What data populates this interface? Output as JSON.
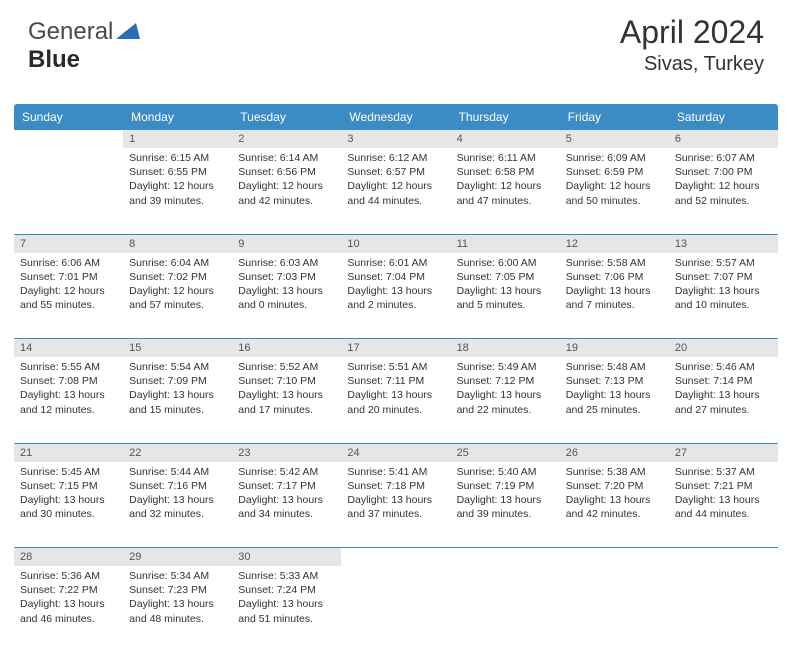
{
  "logo": {
    "text1": "General",
    "text2": "Blue",
    "triangle_color": "#2a6fb5"
  },
  "title": "April 2024",
  "location": "Sivas, Turkey",
  "colors": {
    "header_bg": "#3b8bc4",
    "header_text": "#ffffff",
    "daynum_bg": "#e6e6e6",
    "border": "#3b8bc4",
    "text": "#333333"
  },
  "day_headers": [
    "Sunday",
    "Monday",
    "Tuesday",
    "Wednesday",
    "Thursday",
    "Friday",
    "Saturday"
  ],
  "weeks": [
    [
      null,
      {
        "n": "1",
        "sr": "6:15 AM",
        "ss": "6:55 PM",
        "dl": "12 hours and 39 minutes."
      },
      {
        "n": "2",
        "sr": "6:14 AM",
        "ss": "6:56 PM",
        "dl": "12 hours and 42 minutes."
      },
      {
        "n": "3",
        "sr": "6:12 AM",
        "ss": "6:57 PM",
        "dl": "12 hours and 44 minutes."
      },
      {
        "n": "4",
        "sr": "6:11 AM",
        "ss": "6:58 PM",
        "dl": "12 hours and 47 minutes."
      },
      {
        "n": "5",
        "sr": "6:09 AM",
        "ss": "6:59 PM",
        "dl": "12 hours and 50 minutes."
      },
      {
        "n": "6",
        "sr": "6:07 AM",
        "ss": "7:00 PM",
        "dl": "12 hours and 52 minutes."
      }
    ],
    [
      {
        "n": "7",
        "sr": "6:06 AM",
        "ss": "7:01 PM",
        "dl": "12 hours and 55 minutes."
      },
      {
        "n": "8",
        "sr": "6:04 AM",
        "ss": "7:02 PM",
        "dl": "12 hours and 57 minutes."
      },
      {
        "n": "9",
        "sr": "6:03 AM",
        "ss": "7:03 PM",
        "dl": "13 hours and 0 minutes."
      },
      {
        "n": "10",
        "sr": "6:01 AM",
        "ss": "7:04 PM",
        "dl": "13 hours and 2 minutes."
      },
      {
        "n": "11",
        "sr": "6:00 AM",
        "ss": "7:05 PM",
        "dl": "13 hours and 5 minutes."
      },
      {
        "n": "12",
        "sr": "5:58 AM",
        "ss": "7:06 PM",
        "dl": "13 hours and 7 minutes."
      },
      {
        "n": "13",
        "sr": "5:57 AM",
        "ss": "7:07 PM",
        "dl": "13 hours and 10 minutes."
      }
    ],
    [
      {
        "n": "14",
        "sr": "5:55 AM",
        "ss": "7:08 PM",
        "dl": "13 hours and 12 minutes."
      },
      {
        "n": "15",
        "sr": "5:54 AM",
        "ss": "7:09 PM",
        "dl": "13 hours and 15 minutes."
      },
      {
        "n": "16",
        "sr": "5:52 AM",
        "ss": "7:10 PM",
        "dl": "13 hours and 17 minutes."
      },
      {
        "n": "17",
        "sr": "5:51 AM",
        "ss": "7:11 PM",
        "dl": "13 hours and 20 minutes."
      },
      {
        "n": "18",
        "sr": "5:49 AM",
        "ss": "7:12 PM",
        "dl": "13 hours and 22 minutes."
      },
      {
        "n": "19",
        "sr": "5:48 AM",
        "ss": "7:13 PM",
        "dl": "13 hours and 25 minutes."
      },
      {
        "n": "20",
        "sr": "5:46 AM",
        "ss": "7:14 PM",
        "dl": "13 hours and 27 minutes."
      }
    ],
    [
      {
        "n": "21",
        "sr": "5:45 AM",
        "ss": "7:15 PM",
        "dl": "13 hours and 30 minutes."
      },
      {
        "n": "22",
        "sr": "5:44 AM",
        "ss": "7:16 PM",
        "dl": "13 hours and 32 minutes."
      },
      {
        "n": "23",
        "sr": "5:42 AM",
        "ss": "7:17 PM",
        "dl": "13 hours and 34 minutes."
      },
      {
        "n": "24",
        "sr": "5:41 AM",
        "ss": "7:18 PM",
        "dl": "13 hours and 37 minutes."
      },
      {
        "n": "25",
        "sr": "5:40 AM",
        "ss": "7:19 PM",
        "dl": "13 hours and 39 minutes."
      },
      {
        "n": "26",
        "sr": "5:38 AM",
        "ss": "7:20 PM",
        "dl": "13 hours and 42 minutes."
      },
      {
        "n": "27",
        "sr": "5:37 AM",
        "ss": "7:21 PM",
        "dl": "13 hours and 44 minutes."
      }
    ],
    [
      {
        "n": "28",
        "sr": "5:36 AM",
        "ss": "7:22 PM",
        "dl": "13 hours and 46 minutes."
      },
      {
        "n": "29",
        "sr": "5:34 AM",
        "ss": "7:23 PM",
        "dl": "13 hours and 48 minutes."
      },
      {
        "n": "30",
        "sr": "5:33 AM",
        "ss": "7:24 PM",
        "dl": "13 hours and 51 minutes."
      },
      null,
      null,
      null,
      null
    ]
  ]
}
